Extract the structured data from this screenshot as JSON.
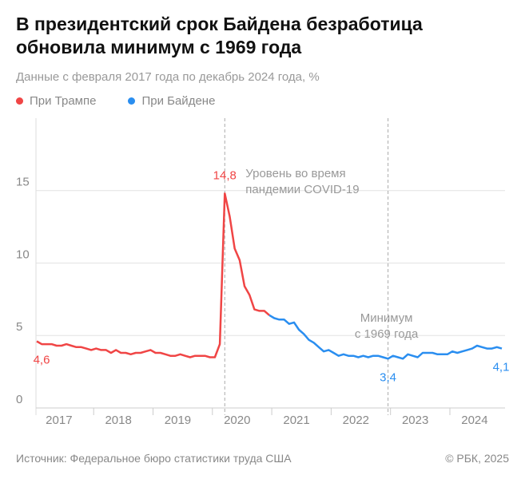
{
  "chart_data": {
    "type": "line",
    "title": "В президентский срок Байдена безработица обновила минимум с 1969 года",
    "subtitle": "Данные с февраля 2017 года по декабрь 2024 года, %",
    "categories": [
      null,
      null,
      null,
      null,
      null,
      "2017",
      null,
      null,
      null,
      null,
      null,
      null,
      null,
      null,
      null,
      null,
      null,
      "2018",
      null,
      null,
      null,
      null,
      null,
      null,
      null,
      null,
      null,
      null,
      null,
      "2019",
      null,
      null,
      null,
      null,
      null,
      null,
      null,
      null,
      null,
      null,
      null,
      "2020",
      null,
      null,
      null,
      null,
      null,
      null,
      null,
      null,
      null,
      null,
      null,
      "2021",
      null,
      null,
      null,
      null,
      null,
      null,
      null,
      null,
      null,
      null,
      null,
      "2022",
      null,
      null,
      null,
      null,
      null,
      null,
      null,
      null,
      null,
      null,
      null,
      "2023",
      null,
      null,
      null,
      null,
      null,
      null,
      null,
      null,
      null,
      null,
      null,
      "2024",
      null,
      null,
      null,
      null,
      null
    ],
    "series": [
      {
        "name": "При Трампе",
        "color": "#f04545",
        "values": [
          4.6,
          4.4,
          4.4,
          4.4,
          4.3,
          4.3,
          4.4,
          4.3,
          4.2,
          4.2,
          4.1,
          4.0,
          4.1,
          4.0,
          4.0,
          3.8,
          4.0,
          3.8,
          3.8,
          3.7,
          3.8,
          3.8,
          3.9,
          4.0,
          3.8,
          3.8,
          3.7,
          3.6,
          3.6,
          3.7,
          3.6,
          3.5,
          3.6,
          3.6,
          3.6,
          3.5,
          3.5,
          4.4,
          14.8,
          13.2,
          11.0,
          10.2,
          8.4,
          7.8,
          6.8,
          6.7,
          6.7,
          6.4,
          null,
          null,
          null,
          null,
          null,
          null,
          null,
          null,
          null,
          null,
          null,
          null,
          null,
          null,
          null,
          null,
          null,
          null,
          null,
          null,
          null,
          null,
          null,
          null,
          null,
          null,
          null,
          null,
          null,
          null,
          null,
          null,
          null,
          null,
          null,
          null,
          null,
          null,
          null,
          null,
          null,
          null,
          null,
          null,
          null,
          null,
          null
        ],
        "value_labels": [
          "4,6",
          null,
          null,
          null,
          null,
          null,
          null,
          null,
          null,
          null,
          null,
          null,
          null,
          null,
          null,
          null,
          null,
          null,
          null,
          null,
          null,
          null,
          null,
          null,
          null,
          null,
          null,
          null,
          null,
          null,
          null,
          null,
          null,
          null,
          null,
          null,
          null,
          null,
          "14,8",
          null,
          null,
          null,
          null,
          null,
          null,
          null,
          null,
          null,
          null,
          null,
          null,
          null,
          null,
          null,
          null,
          null,
          null,
          null,
          null,
          null,
          null,
          null,
          null,
          null,
          null,
          null,
          null,
          null,
          null,
          null,
          null,
          null,
          null,
          null,
          null,
          null,
          null,
          null,
          null,
          null,
          null,
          null,
          null,
          null,
          null,
          null,
          null,
          null,
          null,
          null,
          null,
          null,
          null,
          null,
          null
        ]
      },
      {
        "name": "При Байдене",
        "color": "#2a8ef0",
        "values": [
          null,
          null,
          null,
          null,
          null,
          null,
          null,
          null,
          null,
          null,
          null,
          null,
          null,
          null,
          null,
          null,
          null,
          null,
          null,
          null,
          null,
          null,
          null,
          null,
          null,
          null,
          null,
          null,
          null,
          null,
          null,
          null,
          null,
          null,
          null,
          null,
          null,
          null,
          null,
          null,
          null,
          null,
          null,
          null,
          null,
          null,
          null,
          6.4,
          6.2,
          6.1,
          6.1,
          5.8,
          5.9,
          5.4,
          5.1,
          4.7,
          4.5,
          4.2,
          3.9,
          4.0,
          3.8,
          3.6,
          3.7,
          3.6,
          3.6,
          3.5,
          3.6,
          3.5,
          3.6,
          3.6,
          3.5,
          3.4,
          3.6,
          3.5,
          3.4,
          3.7,
          3.6,
          3.5,
          3.8,
          3.8,
          3.8,
          3.7,
          3.7,
          3.7,
          3.9,
          3.8,
          3.9,
          4.0,
          4.1,
          4.3,
          4.2,
          4.1,
          4.1,
          4.2,
          4.1
        ],
        "value_labels": [
          null,
          null,
          null,
          null,
          null,
          null,
          null,
          null,
          null,
          null,
          null,
          null,
          null,
          null,
          null,
          null,
          null,
          null,
          null,
          null,
          null,
          null,
          null,
          null,
          null,
          null,
          null,
          null,
          null,
          null,
          null,
          null,
          null,
          null,
          null,
          null,
          null,
          null,
          null,
          null,
          null,
          null,
          null,
          null,
          null,
          null,
          null,
          null,
          null,
          null,
          null,
          null,
          null,
          null,
          null,
          null,
          null,
          null,
          null,
          null,
          null,
          null,
          null,
          null,
          null,
          null,
          null,
          null,
          null,
          null,
          null,
          "3,4",
          null,
          null,
          null,
          null,
          null,
          null,
          null,
          null,
          null,
          null,
          null,
          null,
          null,
          null,
          null,
          null,
          null,
          null,
          null,
          null,
          null,
          null,
          "4,1"
        ]
      }
    ],
    "annotations": [
      [
        "Уровень во время",
        "пандемии COVID-19"
      ],
      [
        "Минимум",
        "с 1969 года"
      ]
    ],
    "ylim": [
      0,
      20
    ],
    "yticks": [
      0,
      5,
      10,
      15
    ],
    "grid": true,
    "source": "Источник: Федеральное бюро статистики труда США",
    "credit": "© РБК, 2025"
  }
}
